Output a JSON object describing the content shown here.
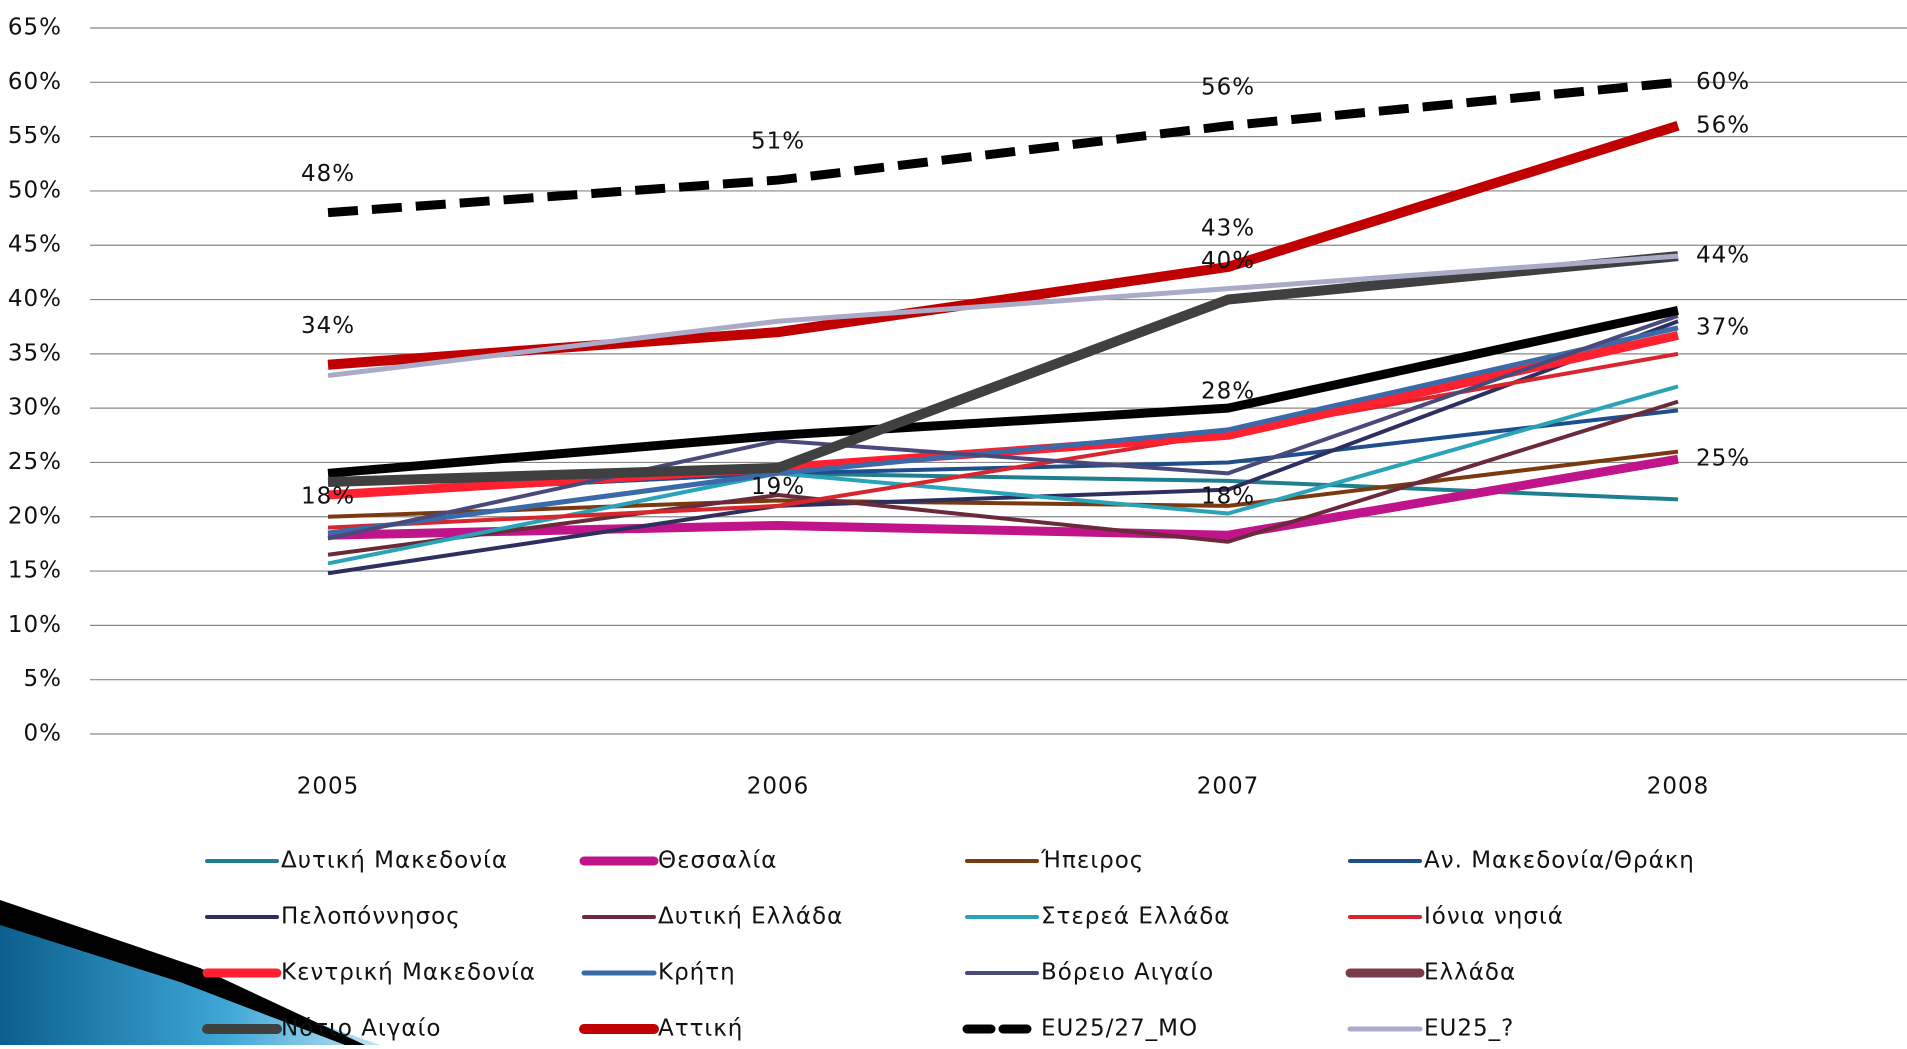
{
  "chart_data": {
    "type": "line",
    "categories": [
      "2005",
      "2006",
      "2007",
      "2008"
    ],
    "ylim": [
      0,
      65
    ],
    "yticks": [
      {
        "value": 0,
        "label": "0%"
      },
      {
        "value": 5,
        "label": "5%"
      },
      {
        "value": 10,
        "label": "10%"
      },
      {
        "value": 15,
        "label": "15%"
      },
      {
        "value": 20,
        "label": "20%"
      },
      {
        "value": 25,
        "label": "25%"
      },
      {
        "value": 30,
        "label": "30%"
      },
      {
        "value": 35,
        "label": "35%"
      },
      {
        "value": 40,
        "label": "40%"
      },
      {
        "value": 45,
        "label": "45%"
      },
      {
        "value": 50,
        "label": "50%"
      },
      {
        "value": 55,
        "label": "55%"
      },
      {
        "value": 60,
        "label": "60%"
      },
      {
        "value": 65,
        "label": "65%"
      }
    ],
    "grid": true,
    "series": [
      {
        "name": "Δυτική Μακεδονία",
        "color": "#1f7f8f",
        "line_width": 4,
        "values": [
          22,
          24,
          23.3,
          21.6
        ]
      },
      {
        "name": "Θεσσαλία",
        "color": "#c0158a",
        "line_width": 9,
        "values": [
          18.3,
          19.2,
          18.3,
          25.3
        ],
        "value_labels": [
          "18%",
          "19%",
          "18%",
          "25%"
        ]
      },
      {
        "name": "Ήπειρος",
        "color": "#7a3a10",
        "line_width": 4,
        "values": [
          20,
          21.5,
          21,
          26
        ]
      },
      {
        "name": "Αν. Μακεδονία/Θράκη",
        "color": "#1f4e8c",
        "line_width": 4,
        "values": [
          22,
          24,
          25,
          29.8
        ]
      },
      {
        "name": "Πελοπόννησος",
        "color": "#2f2f5f",
        "line_width": 4,
        "values": [
          14.8,
          21,
          22.5,
          38
        ]
      },
      {
        "name": "Δυτική Ελλάδα",
        "color": "#6b2a3a",
        "line_width": 4,
        "values": [
          16.5,
          22,
          17.7,
          30.6
        ]
      },
      {
        "name": "Στερεά Ελλάδα",
        "color": "#2aa3b8",
        "line_width": 4,
        "values": [
          15.7,
          24,
          20.3,
          32
        ]
      },
      {
        "name": "Ιόνια νησιά",
        "color": "#d9262e",
        "line_width": 4,
        "values": [
          19,
          21,
          27.7,
          35
        ]
      },
      {
        "name": "Κεντρική Μακεδονία",
        "color": "#ff2030",
        "line_width": 9,
        "values": [
          22,
          24.5,
          27.5,
          36.7
        ]
      },
      {
        "name": "Κρήτη",
        "color": "#3a6aa8",
        "line_width": 5,
        "values": [
          18.5,
          24,
          28,
          37.4
        ],
        "value_labels": [
          null,
          null,
          "28%",
          "37%"
        ]
      },
      {
        "name": "Βόρειο Αιγαίο",
        "color": "#4a4a7a",
        "line_width": 4,
        "values": [
          18,
          27,
          24,
          38.5
        ]
      },
      {
        "name": "Ελλάδα",
        "color": "#000000",
        "legend_color": "#7a3b48",
        "line_width": 9,
        "values": [
          24,
          27.5,
          30,
          39
        ]
      },
      {
        "name": "Νότιο Αιγαίο",
        "color": "#404040",
        "line_width": 10,
        "values": [
          23.2,
          24.5,
          40,
          44
        ],
        "value_labels": [
          null,
          null,
          "40%",
          "44%"
        ]
      },
      {
        "name": "Αττική",
        "color": "#c00000",
        "line_width": 10,
        "values": [
          34,
          37,
          43,
          56
        ],
        "value_labels": [
          "34%",
          null,
          "43%",
          "56%"
        ]
      },
      {
        "name": "EU25/27_MO",
        "color": "#000000",
        "line_width": 9,
        "dash": true,
        "values": [
          48,
          51,
          56,
          60
        ],
        "value_labels": [
          "48%",
          "51%",
          "56%",
          "60%"
        ]
      },
      {
        "name": "EU25_?",
        "color": "#a9abc9",
        "line_width": 5,
        "values": [
          33,
          38,
          41,
          44
        ]
      }
    ]
  }
}
